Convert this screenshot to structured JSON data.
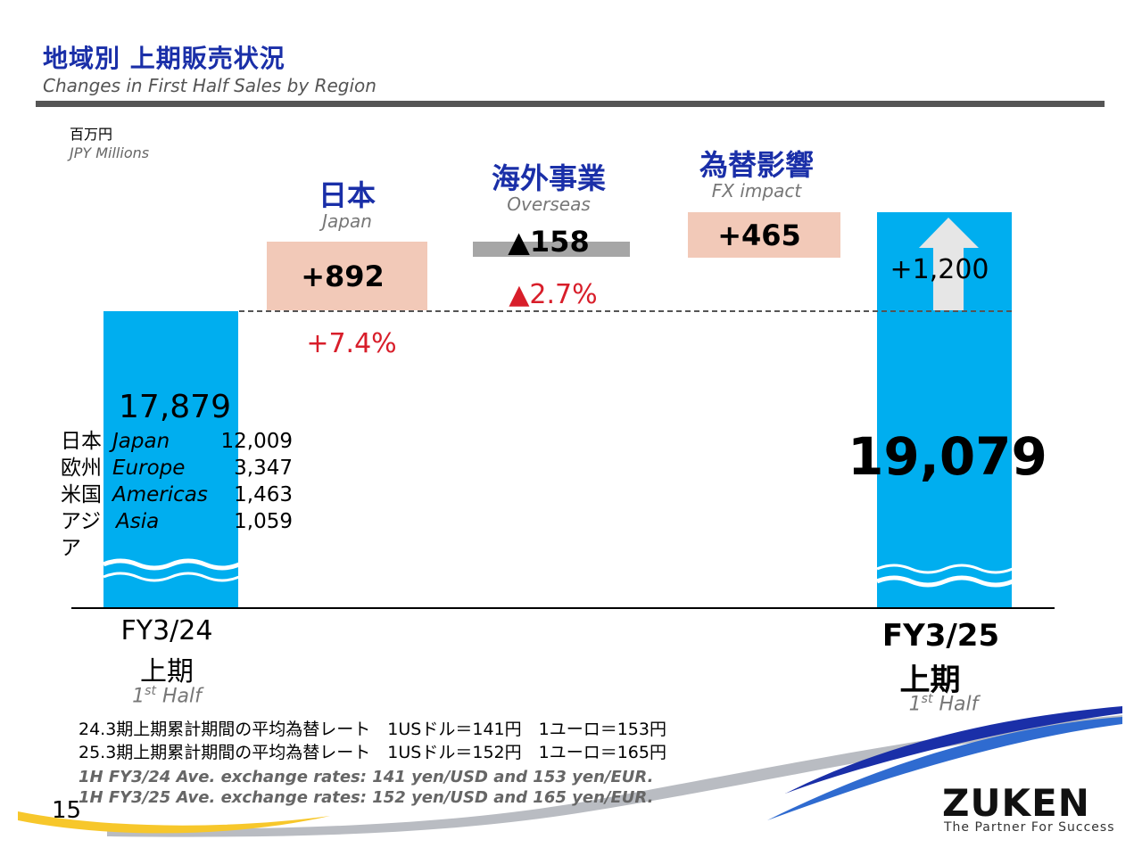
{
  "header": {
    "title_jp": "地域別 上期販売状況",
    "title_en": "Changes in First Half Sales by Region"
  },
  "unit": {
    "jp": "百万円",
    "en": "JPY Millions"
  },
  "chart_data": {
    "type": "bar",
    "subtype": "waterfall",
    "categories": [
      "FY3/24 上期",
      "日本 Japan",
      "海外事業 Overseas",
      "為替影響 FX impact",
      "FY3/25 上期"
    ],
    "start": {
      "label_line1": "FY3/24",
      "label_line2": "上期",
      "label_half": "1st Half",
      "value": 17879,
      "value_label": "17,879"
    },
    "breakdown": [
      {
        "jp": "日本",
        "en": "Japan",
        "value": "12,009"
      },
      {
        "jp": "欧州",
        "en": "Europe",
        "value": "3,347"
      },
      {
        "jp": "米国",
        "en": "Americas",
        "value": "1,463"
      },
      {
        "jp": "アジア",
        "en": "Asia",
        "value": "1,059"
      }
    ],
    "steps": [
      {
        "name_jp": "日本",
        "name_en": "Japan",
        "value": 892,
        "value_label": "+892",
        "pct_label": "+7.4%"
      },
      {
        "name_jp": "海外事業",
        "name_en": "Overseas",
        "value": -158,
        "value_label": "▲158",
        "pct_label": "▲2.7%"
      },
      {
        "name_jp": "為替影響",
        "name_en": "FX impact",
        "value": 465,
        "value_label": "+465"
      }
    ],
    "end": {
      "label_line1": "FY3/25",
      "label_line2": "上期",
      "label_half": "1st Half",
      "value": 19079,
      "value_label": "19,079"
    },
    "total_change_label": "+1,200",
    "colors": {
      "bar": "#00aeef",
      "increase": "#f2c9b8",
      "decrease": "#a6a6a6",
      "pct": "#d81e2a",
      "title": "#1a2fa8"
    }
  },
  "notes": {
    "jp1": "24.3期上期累計期間の平均為替レート　1USドル＝141円　1ユーロ＝153円",
    "jp2": "25.3期上期累計期間の平均為替レート　1USドル＝152円　1ユーロ＝165円",
    "en1": "1H FY3/24 Ave. exchange rates: 141 yen/USD and 153 yen/EUR.",
    "en2": "1H FY3/25 Ave. exchange rates: 152 yen/USD and 165 yen/EUR."
  },
  "footer": {
    "page_number": "15",
    "logo": "ZUKEN",
    "tagline": "The Partner For Success"
  }
}
